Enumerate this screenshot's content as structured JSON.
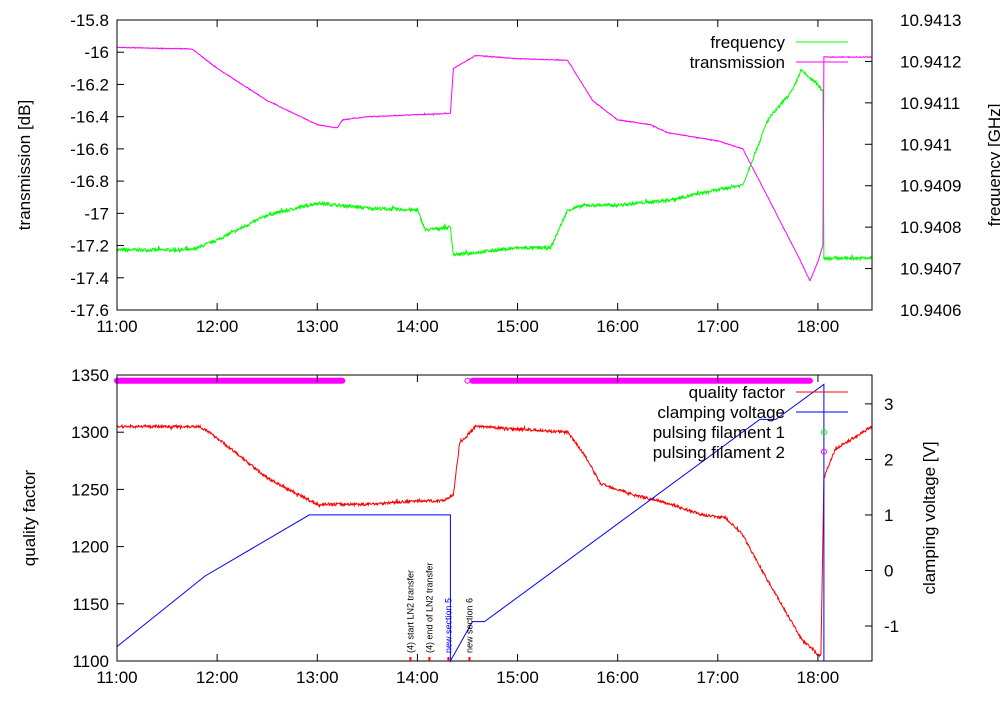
{
  "chart_data": [
    {
      "type": "line",
      "xlabel": "",
      "ylabel": "transmission [dB]",
      "y2label": "frequency [GHz]",
      "xlim": [
        11.0,
        18.54
      ],
      "ylim": [
        -17.6,
        -15.8
      ],
      "y2lim": [
        10.9406,
        10.9413
      ],
      "xticks": [
        "11:00",
        "12:00",
        "13:00",
        "14:00",
        "15:00",
        "16:00",
        "17:00",
        "18:00"
      ],
      "yticks": [
        "-15.8",
        "-16",
        "-16.2",
        "-16.4",
        "-16.6",
        "-16.8",
        "-17",
        "-17.2",
        "-17.4",
        "-17.6"
      ],
      "y2ticks": [
        "10.9413",
        "10.9412",
        "10.9411",
        "10.941",
        "10.9409",
        "10.9408",
        "10.9407",
        "10.9406"
      ],
      "legend_position": "top-right",
      "series": [
        {
          "name": "frequency",
          "axis": "y2",
          "color": "#00ff00",
          "noise": 2e-05,
          "x": [
            11.0,
            11.75,
            12.0,
            12.5,
            13.0,
            13.5,
            14.0,
            14.08,
            14.33,
            14.36,
            15.0,
            15.33,
            15.5,
            15.67,
            16.0,
            16.5,
            17.0,
            17.25,
            17.5,
            17.75,
            17.83,
            18.0,
            18.05,
            18.06,
            18.54
          ],
          "y": [
            10.940745,
            10.940745,
            10.940769,
            10.940829,
            10.940858,
            10.940846,
            10.940841,
            10.940793,
            10.9408,
            10.940733,
            10.94075,
            10.94075,
            10.940841,
            10.940853,
            10.940853,
            10.940865,
            10.94089,
            10.940902,
            10.941059,
            10.941131,
            10.941179,
            10.941143,
            10.941131,
            10.940725,
            10.940725
          ]
        },
        {
          "name": "transmission",
          "axis": "y",
          "color": "#ff00ff",
          "noise": 0.012,
          "x": [
            11.0,
            11.75,
            12.0,
            12.5,
            13.0,
            13.2,
            13.25,
            13.5,
            14.33,
            14.36,
            14.5,
            14.58,
            15.0,
            15.5,
            15.75,
            16.0,
            16.33,
            16.5,
            17.0,
            17.25,
            17.5,
            17.83,
            17.92,
            18.0,
            18.05,
            18.06,
            18.54
          ],
          "y": [
            -15.97,
            -15.98,
            -16.1,
            -16.3,
            -16.45,
            -16.47,
            -16.42,
            -16.4,
            -16.38,
            -16.1,
            -16.05,
            -16.02,
            -16.04,
            -16.05,
            -16.3,
            -16.42,
            -16.45,
            -16.5,
            -16.55,
            -16.6,
            -16.9,
            -17.3,
            -17.42,
            -17.3,
            -17.2,
            -16.03,
            -16.03
          ]
        }
      ]
    },
    {
      "type": "line",
      "xlabel": "",
      "ylabel": "quality factor",
      "y2label": "clamping voltage [V]",
      "xlim": [
        11.0,
        18.54
      ],
      "ylim": [
        1100,
        1350
      ],
      "y2lim": [
        -1.63,
        3.52
      ],
      "xticks": [
        "11:00",
        "12:00",
        "13:00",
        "14:00",
        "15:00",
        "16:00",
        "17:00",
        "18:00"
      ],
      "yticks": [
        "1350",
        "1300",
        "1250",
        "1200",
        "1150",
        "1100"
      ],
      "y2ticks": [
        "3",
        "2",
        "1",
        "0",
        "-1"
      ],
      "legend_position": "top-right",
      "series": [
        {
          "name": "quality factor",
          "axis": "y",
          "color": "#ff0000",
          "noise": 6,
          "x": [
            11.0,
            11.83,
            12.0,
            12.5,
            13.0,
            13.5,
            14.0,
            14.25,
            14.36,
            14.42,
            14.58,
            15.5,
            15.67,
            15.83,
            16.17,
            16.5,
            16.83,
            17.08,
            17.25,
            17.5,
            17.83,
            18.0,
            18.03,
            18.06,
            18.17,
            18.54
          ],
          "y": [
            1305,
            1305,
            1295,
            1260,
            1237,
            1237,
            1240,
            1240,
            1245,
            1290,
            1305,
            1300,
            1280,
            1255,
            1245,
            1238,
            1228,
            1225,
            1210,
            1170,
            1120,
            1105,
            1105,
            1260,
            1285,
            1305
          ]
        },
        {
          "name": "clamping voltage",
          "axis": "y2",
          "color": "#0000ff",
          "noise": 0,
          "x": [
            11.0,
            11.88,
            12.92,
            14.33,
            14.33,
            14.55,
            14.67,
            17.42,
            17.58,
            18.06,
            18.06
          ],
          "y": [
            -1.37,
            -0.1,
            1.0,
            1.0,
            -1.63,
            -0.92,
            -0.92,
            2.72,
            2.72,
            3.35,
            -1.63
          ]
        },
        {
          "name": "pulsing filament 1",
          "axis": "y",
          "color": "#00ff00",
          "points_x": [
            18.06
          ],
          "points_y": [
            1300
          ]
        },
        {
          "name": "pulsing filament 2",
          "axis": "y",
          "color": "#ff00ff",
          "level": 1345,
          "intervals": [
            [
              11.0,
              13.25
            ],
            [
              14.55,
              17.92
            ]
          ],
          "points_x": [
            14.5,
            18.06
          ],
          "points_y": [
            1345,
            1283
          ]
        }
      ],
      "annotations": [
        {
          "x": 13.93,
          "text": "(4) start LN2 transfer",
          "color": "#000000"
        },
        {
          "x": 14.12,
          "text": "(4) end of LN2 transfer",
          "color": "#000000"
        },
        {
          "x": 14.31,
          "text": "new section 5",
          "color": "#0000ff"
        },
        {
          "x": 14.52,
          "text": "new section 6",
          "color": "#000000"
        }
      ]
    }
  ]
}
